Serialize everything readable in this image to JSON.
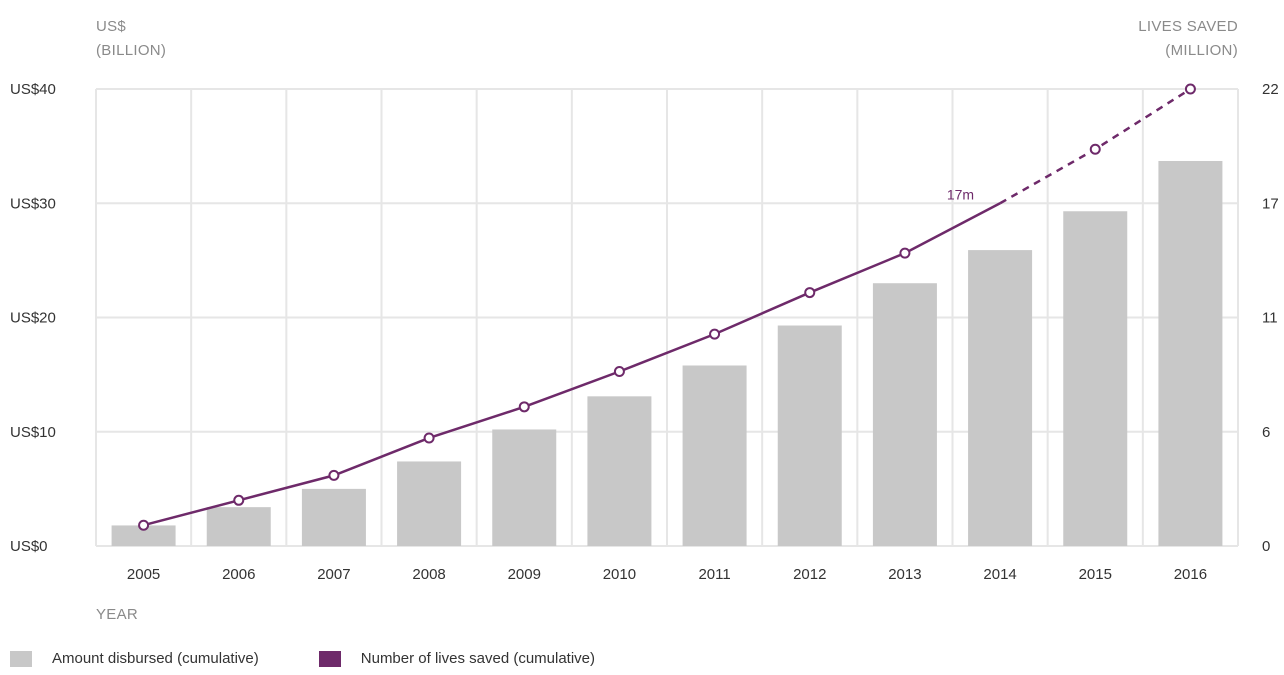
{
  "chart_data": {
    "type": "bar",
    "categories": [
      "2005",
      "2006",
      "2007",
      "2008",
      "2009",
      "2010",
      "2011",
      "2012",
      "2013",
      "2014",
      "2015",
      "2016"
    ],
    "series": [
      {
        "name": "Amount disbursed (cumulative)",
        "type": "bar",
        "axis": "left",
        "color": "#c8c8c8",
        "values": [
          1.8,
          3.4,
          5.0,
          7.4,
          10.2,
          13.1,
          15.8,
          19.3,
          23.0,
          25.9,
          29.3,
          33.7
        ]
      },
      {
        "name": "Number of lives saved (cumulative)",
        "type": "line",
        "axis": "right",
        "color": "#6e2a6a",
        "values": [
          1.0,
          2.2,
          3.4,
          5.2,
          6.7,
          8.4,
          10.2,
          12.2,
          14.1,
          16.5,
          19.1,
          22.0
        ],
        "projected_from_index": 9,
        "projected_style": "dashed"
      }
    ],
    "y_left": {
      "title_line1": "US$",
      "title_line2": "(BILLION)",
      "ylim": [
        0,
        40
      ],
      "ticks": [
        0,
        10,
        20,
        30,
        40
      ],
      "tick_labels": [
        "US$0",
        "US$10",
        "US$20",
        "US$30",
        "US$40"
      ]
    },
    "y_right": {
      "title_line1": "LIVES SAVED",
      "title_line2": "(MILLION)",
      "ylim": [
        0,
        22
      ],
      "tick_labels": [
        "0",
        "6",
        "11",
        "17",
        "22"
      ]
    },
    "xlabel": "YEAR",
    "annotation": {
      "text": "17m",
      "category": "2014"
    },
    "grid": true,
    "legend_position": "bottom-left"
  }
}
